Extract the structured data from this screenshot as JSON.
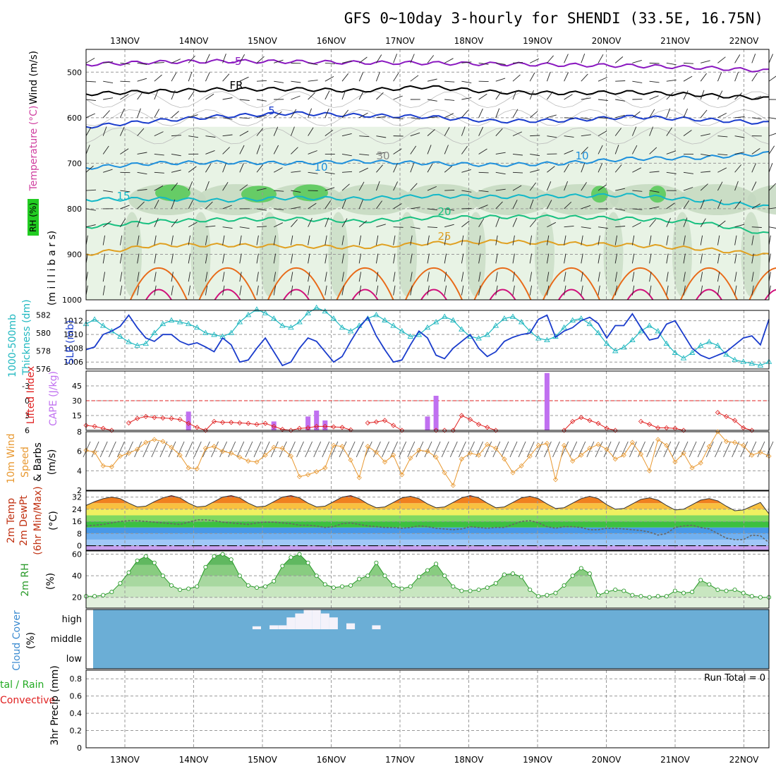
{
  "title": "GFS 0~10day 3-hourly for SHENDI (33.5E, 16.75N)",
  "date_labels": [
    "13NOV",
    "14NOV",
    "15NOV",
    "16NOV",
    "17NOV",
    "18NOV",
    "19NOV",
    "20NOV",
    "21NOV",
    "22NOV"
  ],
  "colors": {
    "minus5": "#8a18c0",
    "fr": "#000000",
    "c5": "#1a3ccc",
    "c10": "#1e90dc",
    "c15": "#12b8c8",
    "c20": "#18c080",
    "c25": "#e0a020",
    "c30": "#e86a18",
    "c35": "#d0107a",
    "rh_light": "#e6f2e2",
    "rh_mid": "#c4d8c0",
    "rh_high": "#66cc66",
    "slp": "#1a3ccc",
    "thick": "#20b8c0",
    "li": "#e02020",
    "cape": "#c070f0",
    "wind": "#e89830",
    "cloud": "#6baed6",
    "rh2m": "#2a9a2a"
  },
  "chart_data": [
    {
      "type": "heatmap",
      "panel": "upper-air",
      "ylabel": "millibars",
      "side_labels": [
        "Wind (m/s)",
        "Temperature (°C)",
        "RH (%)"
      ],
      "y_ticks": [
        "500",
        "600",
        "700",
        "800",
        "900",
        "1000"
      ],
      "y_range": [
        450,
        1000
      ],
      "contour_labels": [
        "-5",
        "FR",
        "5",
        "10",
        "15",
        "20",
        "25",
        "10",
        "30"
      ],
      "isotherms": [
        {
          "name": "-5",
          "values": [
            483,
            478,
            476,
            477,
            479,
            480,
            482,
            484,
            486,
            490,
            497
          ]
        },
        {
          "name": "FR",
          "values": [
            548,
            542,
            538,
            537,
            541,
            532,
            544,
            546,
            544,
            550,
            558
          ]
        },
        {
          "name": "5",
          "values": [
            620,
            607,
            597,
            590,
            595,
            598,
            608,
            606,
            598,
            604,
            612
          ]
        },
        {
          "name": "10",
          "values": [
            710,
            700,
            698,
            700,
            696,
            700,
            704,
            700,
            690,
            688,
            678
          ]
        },
        {
          "name": "15",
          "values": [
            780,
            778,
            782,
            776,
            778,
            772,
            774,
            772,
            770,
            782,
            796
          ]
        },
        {
          "name": "20",
          "values": [
            840,
            828,
            824,
            822,
            828,
            820,
            818,
            818,
            822,
            830,
            856
          ]
        },
        {
          "name": "25",
          "values": [
            900,
            880,
            880,
            882,
            885,
            876,
            872,
            876,
            880,
            888,
            902
          ]
        }
      ]
    },
    {
      "type": "line",
      "panel": "slp-thickness",
      "series": [
        {
          "name": "SLP (mb)",
          "y_ticks": [
            "1006",
            "1008",
            "1010",
            "1012"
          ],
          "ylim": [
            1005,
            1013.5
          ],
          "values": [
            1007.8,
            1008.2,
            1010,
            1010.5,
            1011.2,
            1012.8,
            1011,
            1009.5,
            1009,
            1010,
            1010,
            1009,
            1008.5,
            1008.8,
            1008.2,
            1007.5,
            1009.5,
            1008.5,
            1006,
            1006.3,
            1008,
            1009.5,
            1007.5,
            1005.5,
            1006,
            1008,
            1009.5,
            1009,
            1007.5,
            1006,
            1006.8,
            1009,
            1011,
            1012.5,
            1009.8,
            1007.8,
            1006,
            1006.3,
            1008.5,
            1010.5,
            1009.5,
            1007,
            1006.5,
            1008,
            1009,
            1010,
            1008,
            1006.8,
            1007.5,
            1009,
            1009.6,
            1010,
            1010.2,
            1012.2,
            1012.8,
            1009.6,
            1010.5,
            1011,
            1012,
            1012.5,
            1011.6,
            1009.5,
            1011.3,
            1011.3,
            1013,
            1011,
            1009.2,
            1009.5,
            1011.5,
            1012,
            1010,
            1008,
            1007,
            1006.5,
            1007,
            1007.5,
            1008.5,
            1009.5,
            1009.8,
            1008.5,
            1012.2
          ]
        },
        {
          "name": "Thickness 1000-500mb (dm)",
          "y_ticks": [
            "576",
            "578",
            "580",
            "582"
          ],
          "ylim": [
            576,
            582.5
          ],
          "values": [
            581,
            581.5,
            580.8,
            580.2,
            579.6,
            579,
            578.6,
            578.8,
            580,
            581,
            581.4,
            581.2,
            581,
            580.6,
            580,
            579.8,
            579.6,
            580,
            581.2,
            582,
            582.6,
            582.2,
            581.6,
            580.8,
            580.6,
            581.2,
            582.2,
            582.8,
            582.4,
            581.6,
            580.6,
            580.2,
            580.8,
            581.6,
            582,
            581.4,
            580.8,
            580.2,
            579.6,
            579.8,
            580.6,
            581.2,
            581.8,
            581.4,
            580.4,
            579.6,
            579.4,
            579.8,
            580.8,
            581.6,
            581.8,
            581.2,
            580.2,
            579.4,
            579.2,
            579.6,
            580.6,
            581.4,
            581.6,
            581,
            580,
            578.8,
            578,
            578.4,
            579.2,
            580.2,
            580.8,
            580.2,
            578.8,
            577.8,
            577.2,
            577.8,
            578.6,
            579,
            578.6,
            577.6,
            577,
            576.8,
            576.6,
            576.4,
            576.8
          ]
        }
      ]
    },
    {
      "type": "bar",
      "panel": "cape-li",
      "series": [
        {
          "name": "Lifted Index",
          "y_ticks": [
            "-3",
            "0",
            "3",
            "6"
          ],
          "ylim": [
            6,
            -6
          ],
          "values": [
            5,
            5.2,
            5.6,
            6,
            6.5,
            4.5,
            3.6,
            3.2,
            3.4,
            3.5,
            3.6,
            3.8,
            4.6,
            5.4,
            6,
            4.2,
            4.4,
            4.4,
            4.5,
            4.6,
            4.8,
            4.6,
            5.2,
            5.8,
            6,
            5.6,
            5.5,
            5.2,
            5.2,
            5.3,
            5.4,
            5.9,
            6.5,
            4.5,
            4.3,
            4,
            5,
            6,
            6.5,
            6.5,
            6.5,
            6,
            6,
            6,
            3,
            3.8,
            4.8,
            5.4,
            6,
            6.5,
            6.5,
            6.5,
            6.5,
            6.5,
            6.5,
            6.5,
            6,
            4.2,
            3.4,
            4,
            4.6,
            5.6,
            6,
            6.5,
            6.5,
            4.2,
            4.8,
            5.5,
            5.5,
            5.6,
            6,
            6.5,
            6.5,
            6.5,
            2.4,
            3.2,
            4,
            5.5,
            6,
            6.5,
            6.5
          ]
        },
        {
          "name": "CAPE (J/kg)",
          "y_ticks": [
            "15",
            "30",
            "45"
          ],
          "ylim": [
            0,
            60
          ],
          "values": [
            0,
            0,
            0,
            0,
            0,
            0,
            0,
            0,
            0,
            0,
            0,
            0,
            19,
            0,
            0,
            0,
            0,
            0,
            0,
            0,
            0,
            0,
            9,
            0,
            0,
            0,
            14,
            20,
            10,
            0,
            0,
            0,
            0,
            0,
            0,
            0,
            0,
            0,
            0,
            0,
            14,
            35,
            0,
            0,
            0,
            0,
            0,
            0,
            0,
            0,
            0,
            0,
            0,
            0,
            58,
            0,
            0,
            0,
            0,
            0,
            0,
            0,
            0,
            0,
            0,
            0,
            0,
            0,
            0,
            0,
            0,
            0,
            0,
            0,
            0,
            0,
            0,
            0,
            0,
            0,
            0
          ]
        }
      ]
    },
    {
      "type": "line",
      "panel": "10m-wind",
      "series": [
        {
          "name": "10m Wind Speed (m/s)",
          "y_ticks": [
            "2",
            "4",
            "6",
            "8"
          ],
          "ylim": [
            2,
            8
          ],
          "values": [
            6.1,
            5.9,
            4.5,
            4.4,
            5.5,
            5.8,
            6.2,
            6.9,
            7.2,
            7.0,
            6.4,
            5.6,
            4.3,
            4.2,
            6.3,
            6.5,
            6.0,
            5.8,
            5.4,
            5.0,
            4.9,
            5.6,
            6.4,
            6.3,
            5.5,
            3.4,
            3.6,
            3.9,
            4.3,
            6.6,
            6.5,
            5.1,
            3.3,
            6.5,
            5.9,
            4.9,
            5.6,
            3.6,
            5.3,
            6.1,
            6.0,
            5.4,
            3.8,
            2.5,
            5.2,
            5.8,
            5.6,
            6.7,
            6.3,
            5.2,
            3.8,
            4.5,
            5.5,
            6.6,
            6.8,
            3.1,
            6.6,
            5.0,
            5.6,
            6.3,
            6.7,
            6.2,
            5.2,
            5.6,
            6.9,
            5.7,
            4.0,
            7.2,
            6.6,
            4.9,
            5.8,
            4.3,
            4.8,
            6.5,
            8.0,
            7.0,
            6.9,
            6.6,
            5.6,
            5.9,
            5.5
          ]
        }
      ]
    },
    {
      "type": "area",
      "panel": "2m-temp",
      "ylabel": "°C",
      "y_ticks": [
        "0",
        "8",
        "16",
        "24",
        "32"
      ],
      "ylim": [
        -3,
        36
      ],
      "series": [
        {
          "name": "2m Temp",
          "values": [
            26.5,
            29,
            31,
            32,
            31,
            28,
            25.5,
            26,
            29,
            31.5,
            33,
            31.5,
            28,
            25.5,
            26,
            29,
            32,
            33,
            31.5,
            28,
            25.5,
            26,
            29,
            32,
            33,
            31.5,
            28,
            25.5,
            26,
            29,
            32,
            33,
            31,
            27.5,
            25,
            25.5,
            28.5,
            31.5,
            32.5,
            31,
            27.5,
            25,
            25.5,
            28.5,
            31.5,
            33,
            31.5,
            28,
            25,
            25.5,
            28.5,
            31.5,
            32.5,
            31,
            27.5,
            24.5,
            25,
            28,
            31,
            32.5,
            31,
            27,
            24,
            24.5,
            27.5,
            30.5,
            31.5,
            30,
            26.5,
            23.5,
            24,
            27,
            30,
            31,
            29.5,
            26,
            23,
            23.5,
            26,
            28.5,
            21
          ]
        },
        {
          "name": "2m DewPt",
          "values": [
            13,
            13.5,
            14,
            15,
            16,
            16.5,
            16.5,
            16,
            15.5,
            15,
            14.5,
            14,
            15.5,
            17,
            17,
            16.5,
            15.5,
            15,
            14.5,
            14,
            15,
            15.5,
            15.5,
            15,
            14.5,
            13.5,
            13.5,
            13,
            12,
            12.5,
            14.5,
            15,
            14,
            13,
            12.5,
            12,
            12,
            11.5,
            12,
            13,
            12.5,
            11.5,
            11,
            10.5,
            11,
            12.5,
            12,
            11.5,
            12,
            12,
            14,
            16,
            16.5,
            15,
            12.5,
            11.5,
            12.5,
            12.5,
            12,
            10.5,
            10.5,
            11.5,
            11.5,
            11,
            10.5,
            10,
            9,
            7,
            8,
            12,
            13,
            13.5,
            12,
            11,
            8,
            5,
            4,
            4,
            7,
            6.5,
            2
          ]
        }
      ]
    },
    {
      "type": "area",
      "panel": "2m-rh",
      "ylabel": "%",
      "y_ticks": [
        "20",
        "40",
        "60"
      ],
      "ylim": [
        10,
        63
      ],
      "series": [
        {
          "name": "2m RH",
          "values": [
            21,
            21,
            22,
            25,
            33,
            43,
            54,
            58,
            52,
            40,
            31,
            27,
            28,
            30,
            48,
            58,
            60,
            55,
            40,
            31,
            29,
            30,
            35,
            49,
            57,
            60,
            52,
            40,
            32,
            29,
            30,
            31,
            37,
            40,
            52,
            40,
            31,
            28,
            30,
            39,
            45,
            51,
            40,
            30,
            26,
            26,
            27,
            29,
            33,
            41,
            42,
            39,
            27,
            21,
            22,
            24,
            31,
            40,
            47,
            42,
            22,
            25,
            27,
            26,
            22,
            21,
            20,
            21,
            21,
            26,
            24,
            25,
            36,
            32,
            27,
            26,
            27,
            24,
            21,
            20,
            20
          ]
        }
      ]
    },
    {
      "type": "bar",
      "panel": "cloud-cover",
      "y_ticks": [
        "high",
        "middle",
        "low"
      ],
      "series": [
        {
          "name": "high",
          "values": [
            0,
            0,
            0,
            0,
            0,
            0,
            0,
            0,
            0,
            0,
            0,
            0,
            0,
            0,
            0,
            0,
            0,
            0,
            0,
            0,
            15,
            0,
            20,
            20,
            60,
            80,
            100,
            100,
            80,
            60,
            0,
            30,
            0,
            0,
            20,
            0,
            0,
            0,
            0,
            0,
            0,
            0,
            0,
            0,
            0,
            0,
            0,
            0,
            0,
            0,
            0,
            0,
            0,
            0,
            0,
            0,
            0,
            0,
            0,
            0,
            0,
            0,
            0,
            0,
            0,
            0,
            0,
            0,
            0,
            0,
            0,
            0,
            0,
            0,
            0,
            0,
            0,
            0,
            0,
            0,
            0
          ]
        }
      ]
    },
    {
      "type": "bar",
      "panel": "precip",
      "ylabel": "3hr Precip (mm)",
      "side_labels": [
        "Total / Rain",
        "Convective"
      ],
      "y_ticks": [
        "0",
        "0.2",
        "0.4",
        "0.6",
        "0.8"
      ],
      "ylim": [
        0,
        0.9
      ],
      "run_total": "Run Total = 0",
      "values": []
    }
  ],
  "side_label_texts": {
    "wind": "Wind (m/s)",
    "temperature": "Temperature (°C)",
    "rh": "RH (%)",
    "millibars": "(m i l l i b a r s)",
    "thickness": "1000-500mb",
    "thickness2": "Thickness (dm)",
    "slp": "SLP (mb)",
    "li": "Lifted Index",
    "cape": "CAPE (J/kg)",
    "wind10": "10m Wind",
    "speed": "Speed",
    "barbs": "& Barbs",
    "ms": "(m/s)",
    "temp2m": "2m Temp",
    "dewpt2m": "2m DewPt",
    "minmax": "(6hr Min/Max)",
    "degc": "(°C)",
    "rh2m": "2m RH",
    "pct": "(%)",
    "cloud": "Cloud Cover",
    "cloudpct": "(%)",
    "precip_total": "tal / Rain",
    "precip_conv": "Convective",
    "precip_unit": "3hr Precip (mm)"
  }
}
